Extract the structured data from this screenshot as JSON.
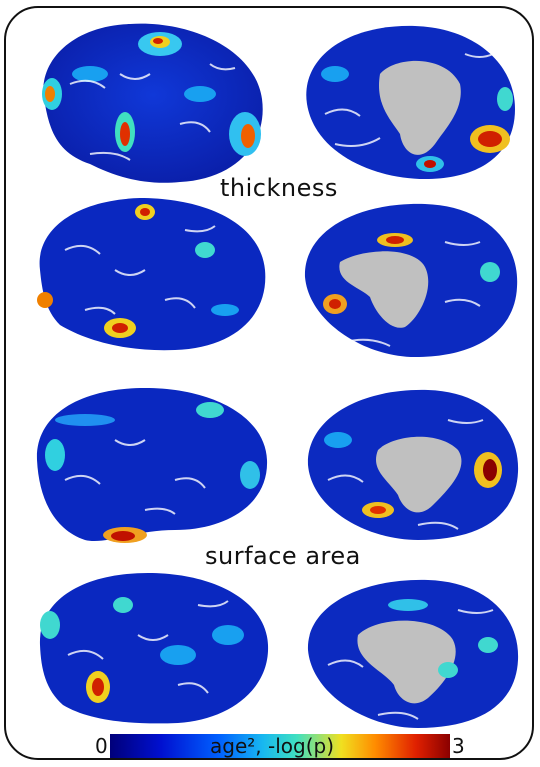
{
  "labels": {
    "thickness": "thickness",
    "surface_area": "surface area"
  },
  "colorbar": {
    "min": "0",
    "max": "3",
    "caption": "age², -log(p)",
    "colors": [
      "#00007a",
      "#0010d0",
      "#0060ff",
      "#18b8f0",
      "#40e0c0",
      "#f0e020",
      "#ff8c00",
      "#e02000",
      "#8a0000"
    ]
  },
  "panels": [
    {
      "row": "thickness-1",
      "view": "lateral"
    },
    {
      "row": "thickness-1",
      "view": "medial"
    },
    {
      "row": "thickness-2",
      "view": "lateral"
    },
    {
      "row": "thickness-2",
      "view": "medial"
    },
    {
      "row": "surface-area-1",
      "view": "lateral"
    },
    {
      "row": "surface-area-1",
      "view": "medial"
    },
    {
      "row": "surface-area-2",
      "view": "lateral"
    },
    {
      "row": "surface-area-2",
      "view": "medial"
    }
  ]
}
